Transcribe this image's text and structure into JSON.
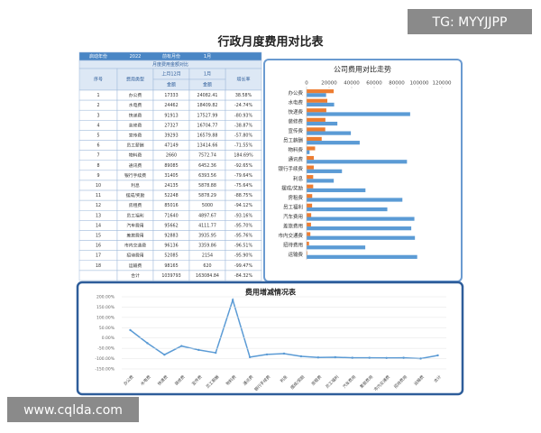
{
  "title": "行政月度费用对比表",
  "watermarks": [
    "TG: MYYJJPP",
    "www.cqlda.com"
  ],
  "table": {
    "top": [
      "启动年份",
      "2022",
      "前有月份",
      "1月"
    ],
    "caption": "月度费用金额对比",
    "header": [
      "序号",
      "费用类型",
      "上月12月",
      "1月",
      "增长率"
    ],
    "subheader": [
      "金额",
      "金额"
    ],
    "rows": [
      [
        "1",
        "办公费",
        "17333",
        "24082.41",
        "38.58%"
      ],
      [
        "2",
        "水电费",
        "24462",
        "18409.82",
        "-24.74%"
      ],
      [
        "3",
        "快递费",
        "91913",
        "17527.99",
        "-80.93%"
      ],
      [
        "4",
        "装修费",
        "27327",
        "16704.77",
        "-38.87%"
      ],
      [
        "5",
        "宣传费",
        "39293",
        "16579.88",
        "-57.80%"
      ],
      [
        "6",
        "员工薪酬",
        "47149",
        "13414.66",
        "-71.55%"
      ],
      [
        "7",
        "物料费",
        "2660",
        "7572.74",
        "184.69%"
      ],
      [
        "8",
        "通讯费",
        "89085",
        "6452.36",
        "-92.65%"
      ],
      [
        "9",
        "银行手续费",
        "31405",
        "6393.56",
        "-79.64%"
      ],
      [
        "10",
        "利息",
        "24135",
        "5878.88",
        "-75.64%"
      ],
      [
        "11",
        "摆成/奖励",
        "52248",
        "5878.29",
        "-88.75%"
      ],
      [
        "12",
        "房租费",
        "85016",
        "5000",
        "-94.12%"
      ],
      [
        "13",
        "员工福利",
        "71640",
        "4897.67",
        "-93.16%"
      ],
      [
        "14",
        "汽车费用",
        "95662",
        "4111.77",
        "-95.70%"
      ],
      [
        "15",
        "差旅费用",
        "92883",
        "3935.95",
        "-95.76%"
      ],
      [
        "16",
        "市内交通费",
        "96136",
        "3359.86",
        "-96.51%"
      ],
      [
        "17",
        "招待费用",
        "52085",
        "2154",
        "-95.90%"
      ],
      [
        "18",
        "运输费",
        "98165",
        "620",
        "-99.47%"
      ]
    ],
    "total": [
      "合计",
      "1039793",
      "163084.84",
      "-84.32%"
    ]
  },
  "chart_data": [
    {
      "type": "hbar",
      "title": "公司费用对比走势",
      "categories": [
        "办公费",
        "水电费",
        "快递费",
        "装修费",
        "宣传费",
        "员工薪酬",
        "物料费",
        "通讯费",
        "银行手续费",
        "利息",
        "摆成/奖励",
        "房租费",
        "员工福利",
        "汽车费用",
        "差旅费用",
        "市内交通费",
        "招待费用",
        "运输费"
      ],
      "series": [
        {
          "color": "#ed7d31",
          "values": [
            24082.41,
            18409.82,
            17527.99,
            16704.77,
            16579.88,
            13414.66,
            7572.74,
            6452.36,
            6393.56,
            5878.88,
            5878.29,
            5000,
            4897.67,
            4111.77,
            3935.95,
            3359.86,
            2154,
            620
          ]
        },
        {
          "color": "#5b9bd5",
          "values": [
            17333,
            24462,
            91913,
            27327,
            39293,
            47149,
            2660,
            89085,
            31405,
            24135,
            52248,
            85016,
            71640,
            95662,
            92883,
            96136,
            52085,
            98165
          ]
        }
      ],
      "xlim": [
        0,
        120000
      ],
      "xticks": [
        0,
        20000,
        40000,
        60000,
        80000,
        100000,
        120000
      ]
    },
    {
      "type": "line",
      "title": "费用增减情况表",
      "categories": [
        "办公费",
        "水电费",
        "快递费",
        "装修费",
        "宣传费",
        "员工薪酬",
        "物料费",
        "通讯费",
        "银行手续费",
        "利息",
        "摆成/奖励",
        "房租费",
        "员工福利",
        "汽车费用",
        "差旅费用",
        "市内交通费",
        "招待费用",
        "运输费",
        "合计"
      ],
      "series": [
        {
          "color": "#5b9bd5",
          "values": [
            38.58,
            -24.74,
            -80.93,
            -38.87,
            -57.8,
            -71.55,
            184.69,
            -92.65,
            -79.64,
            -75.64,
            -88.75,
            -94.12,
            -93.16,
            -95.7,
            -95.76,
            -96.51,
            -95.9,
            -99.47,
            -84.32
          ]
        }
      ],
      "ylim": [
        -150,
        200
      ],
      "yticks": [
        {
          "value": 200,
          "label": "200.00%"
        },
        {
          "value": 150,
          "label": "150.00%"
        },
        {
          "value": 100,
          "label": "100.00%"
        },
        {
          "value": 50,
          "label": "50.00%"
        },
        {
          "value": 0,
          "label": "0.00%"
        },
        {
          "value": -50,
          "label": "-50.00%"
        },
        {
          "value": -100,
          "label": "-100.00%"
        },
        {
          "value": -150,
          "label": "-150.00%"
        }
      ],
      "grid": true
    }
  ]
}
